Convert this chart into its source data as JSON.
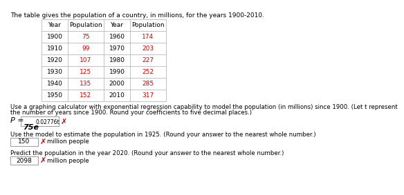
{
  "title": "The table gives the population of a country, in millions, for the years 1900-2010.",
  "table_headers": [
    "Year",
    "Population",
    "Year",
    "Population"
  ],
  "table_data": [
    [
      "1900",
      "75",
      "1960",
      "174"
    ],
    [
      "1910",
      "99",
      "1970",
      "203"
    ],
    [
      "1920",
      "107",
      "1980",
      "227"
    ],
    [
      "1930",
      "125",
      "1990",
      "252"
    ],
    [
      "1940",
      "135",
      "2000",
      "285"
    ],
    [
      "1950",
      "152",
      "2010",
      "317"
    ]
  ],
  "pop_color": "#cc0000",
  "year_color": "#000000",
  "header_color": "#000000",
  "text1": "Use a graphing calculator with exponential regression capability to model the population (in millions) since 1900. (Let t represent",
  "text2": "the number of years since 1900. Round your coefficients to five decimal places.)",
  "formula_prefix": "P = ",
  "formula_box_text": "75e",
  "formula_exp": "0.02776t",
  "cross": "✗",
  "text3": "Use the model to estimate the population in 1925. (Round your answer to the nearest whole number.)",
  "answer1_box": "150",
  "answer1_suffix": "million people",
  "text4": "Predict the population in the year 2020. (Round your answer to the nearest whole number.)",
  "answer2_box": "2098",
  "answer2_suffix": "million people",
  "bg_color": "#ffffff",
  "cross_color": "#cc0000",
  "title_fontsize": 6.5,
  "table_fontsize": 6.5,
  "body_fontsize": 6.2
}
